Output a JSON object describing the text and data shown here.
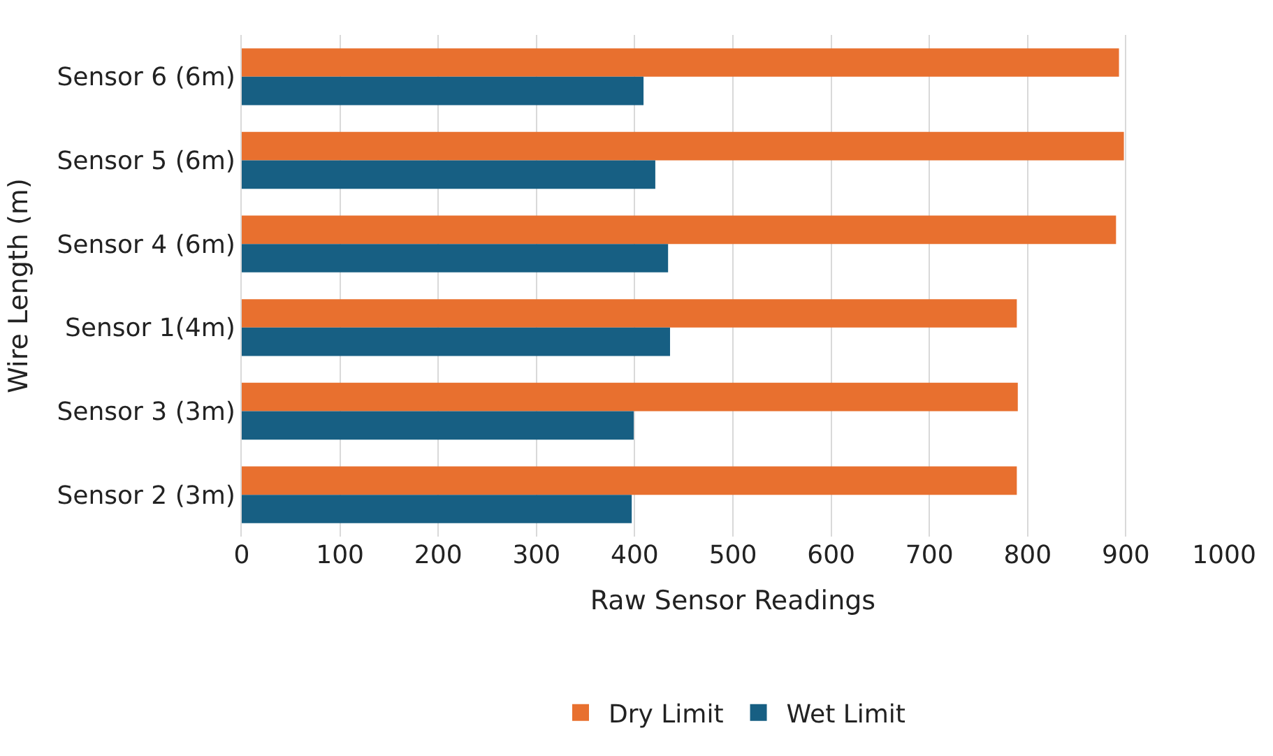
{
  "chart_data": {
    "type": "bar",
    "orientation": "horizontal",
    "xlabel": "Raw Sensor Readings",
    "ylabel": "Wire Length (m)",
    "categories": [
      "Sensor 6 (6m)",
      "Sensor 5 (6m)",
      "Sensor 4 (6m)",
      "Sensor 1(4m)",
      "Sensor 3 (3m)",
      "Sensor 2 (3m)"
    ],
    "series": [
      {
        "name": "Dry Limit",
        "color": "#e8702f",
        "values": [
          893,
          898,
          890,
          789,
          790,
          789
        ]
      },
      {
        "name": "Wet Limit",
        "color": "#175f83",
        "values": [
          409,
          421,
          434,
          436,
          399,
          397
        ]
      }
    ],
    "xlim": [
      0,
      1000
    ],
    "xticks": [
      0,
      100,
      200,
      300,
      400,
      500,
      600,
      700,
      800,
      900,
      1000
    ],
    "grid": "x",
    "legend": "bottom"
  }
}
